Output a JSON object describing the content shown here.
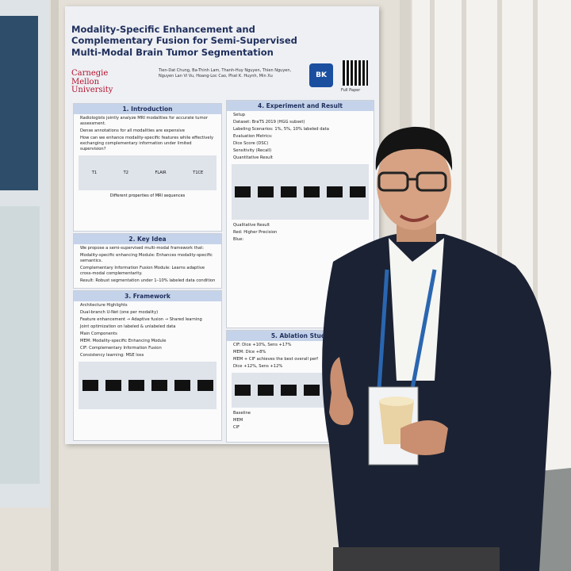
{
  "poster": {
    "title": "Modality-Specific Enhancement and Complementary Fusion for Semi-Supervised Multi-Modal Brain Tumor Segmentation",
    "authors": "Tien-Dat Chung, Ba-Thinh Lam, Thanh-Huy Nguyen, Thien Nguyen, Nguyen Lan Vi Vu, Hoang-Loc Cao, Phat K. Huynh, Min Xu",
    "affiliation": "Carnegie Mellon University",
    "badge": "BK",
    "qr_caption": "Full Paper",
    "sections": [
      {
        "heading": "1. Introduction",
        "items": [
          "Radiologists jointly analyze MRI modalities for accurate tumor assessment.",
          "Dense annotations for all modalities are expensive",
          "How can we enhance modality-specific features while effectively exchanging complementary information under limited supervision?"
        ],
        "figure_labels": [
          "T1",
          "T2",
          "FLAIR",
          "T1CE"
        ],
        "caption": "Different properties of MRI sequences"
      },
      {
        "heading": "2. Key Idea",
        "items": [
          "We propose a semi-supervised multi-modal framework that:",
          "Modality-specific enhancing Module: Enhances modality-specific semantics.",
          "Complementary Information Fusion Module: Learns adaptive cross-modal complementarity.",
          "Result: Robust segmentation under 1–10% labeled data condition"
        ]
      },
      {
        "heading": "3. Framework",
        "items": [
          "Architecture Highlights",
          "Dual-branch U-Net (one per modality)",
          "Feature enhancement → Adaptive fusion → Shared learning",
          "Joint optimization on labeled & unlabeled data",
          "Main Components",
          "MEM: Modality-specific Enhancing Module",
          "CIF: Complementary Information Fusion",
          "Consistency learning: MSE loss"
        ]
      },
      {
        "heading": "4. Experiment and Result",
        "items": [
          "Setup",
          "Dataset: BraTS 2019 (HGG subset)",
          "Labeling Scenarios: 1%, 5%, 10% labeled data",
          "Evaluation Metrics:",
          "Dice Score (DSC)",
          "Sensitivity (Recall)",
          "Quantitative Result",
          "Qualitative Result",
          "Red: Higher Precision",
          "Blue:"
        ]
      },
      {
        "heading": "5. Ablation Study",
        "items": [
          "CIF: Dice +10%, Sens +17%",
          "MEM: Dice +8%",
          "MEM + CIF achieves the best overall perf",
          "Dice +12%, Sens +12%",
          "Baseline",
          "MEM",
          "CIF"
        ]
      }
    ]
  }
}
